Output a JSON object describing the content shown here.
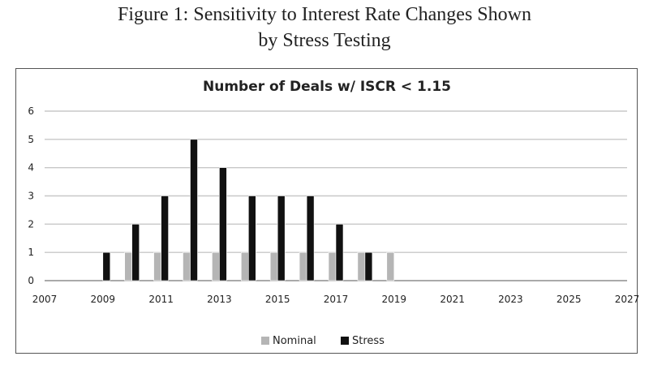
{
  "figure": {
    "title_line1": "Figure 1: Sensitivity to Interest Rate Changes Shown",
    "title_line2": "by Stress Testing"
  },
  "chart_data": {
    "type": "bar",
    "title": "Number of Deals w/ ISCR < 1.15",
    "x": [
      2007,
      2008,
      2009,
      2010,
      2011,
      2012,
      2013,
      2014,
      2015,
      2016,
      2017,
      2018,
      2019,
      2020,
      2021,
      2022,
      2023,
      2024,
      2025,
      2026,
      2027
    ],
    "x_tick_labels": [
      "2007",
      "2009",
      "2011",
      "2013",
      "2015",
      "2017",
      "2019",
      "2021",
      "2023",
      "2025",
      "2027"
    ],
    "y_tick_labels": [
      "0",
      "1",
      "2",
      "3",
      "4",
      "5",
      "6"
    ],
    "ylim": [
      0,
      6
    ],
    "grid": true,
    "legend_position": "bottom",
    "series": [
      {
        "name": "Nominal",
        "color": "#b5b5b5",
        "values": [
          0,
          0,
          0,
          1,
          1,
          1,
          1,
          1,
          1,
          1,
          1,
          1,
          1,
          0,
          0,
          0,
          0,
          0,
          0,
          0,
          0
        ]
      },
      {
        "name": "Stress",
        "color": "#111111",
        "values": [
          0,
          0,
          1,
          2,
          3,
          5,
          4,
          3,
          3,
          3,
          2,
          1,
          0,
          0,
          0,
          0,
          0,
          0,
          0,
          0,
          0
        ]
      }
    ]
  }
}
